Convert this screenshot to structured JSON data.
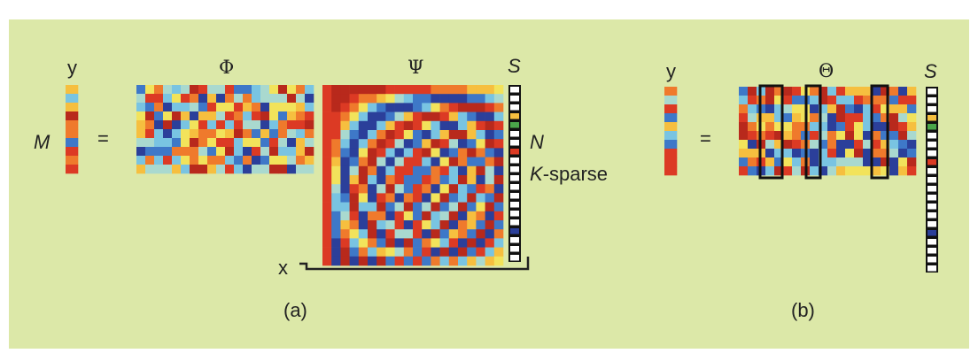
{
  "panel_a": {
    "label_y": "y",
    "label_phi": "Φ",
    "label_psi": "Ψ",
    "label_s": "S",
    "label_m": "M",
    "equals": "=",
    "label_n": "N",
    "label_k": "K",
    "label_sparse": "-sparse",
    "label_x": "x",
    "caption": "(a)"
  },
  "panel_b": {
    "label_y": "y",
    "label_theta": "Θ",
    "label_s": "S",
    "equals": "=",
    "caption": "(b)"
  },
  "colors": {
    "background": "#dce8a8",
    "palette": [
      "#2b3f9a",
      "#3e78c8",
      "#79c4e2",
      "#a9d9cf",
      "#f2e35b",
      "#f6bf3f",
      "#ef7a2c",
      "#dc3a24",
      "#b8291c"
    ],
    "sparse_nonzero": [
      "#f6bf3f",
      "#4aa64a",
      "#dc3a24",
      "#2b3f9a"
    ]
  }
}
